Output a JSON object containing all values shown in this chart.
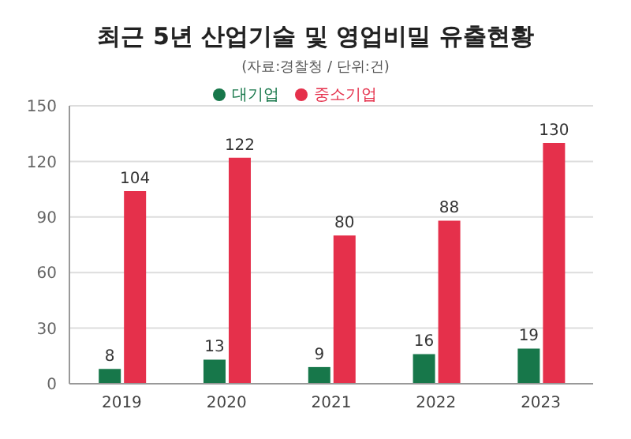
{
  "chart_data": {
    "type": "bar",
    "title": "최근 5년 산업기술 및 영업비밀 유출현황",
    "subtitle": "(자료:경찰청 / 단위:건)",
    "categories": [
      "2019",
      "2020",
      "2021",
      "2022",
      "2023"
    ],
    "series": [
      {
        "name": "대기업",
        "color": "#17774a",
        "values": [
          8,
          13,
          9,
          16,
          19
        ]
      },
      {
        "name": "중소기업",
        "color": "#e5304b",
        "values": [
          104,
          122,
          80,
          88,
          130
        ]
      }
    ],
    "ylim": [
      0,
      150
    ],
    "yticks": [
      0,
      30,
      60,
      90,
      120,
      150
    ],
    "grid": "y",
    "legend": "top",
    "data_labels": true
  }
}
